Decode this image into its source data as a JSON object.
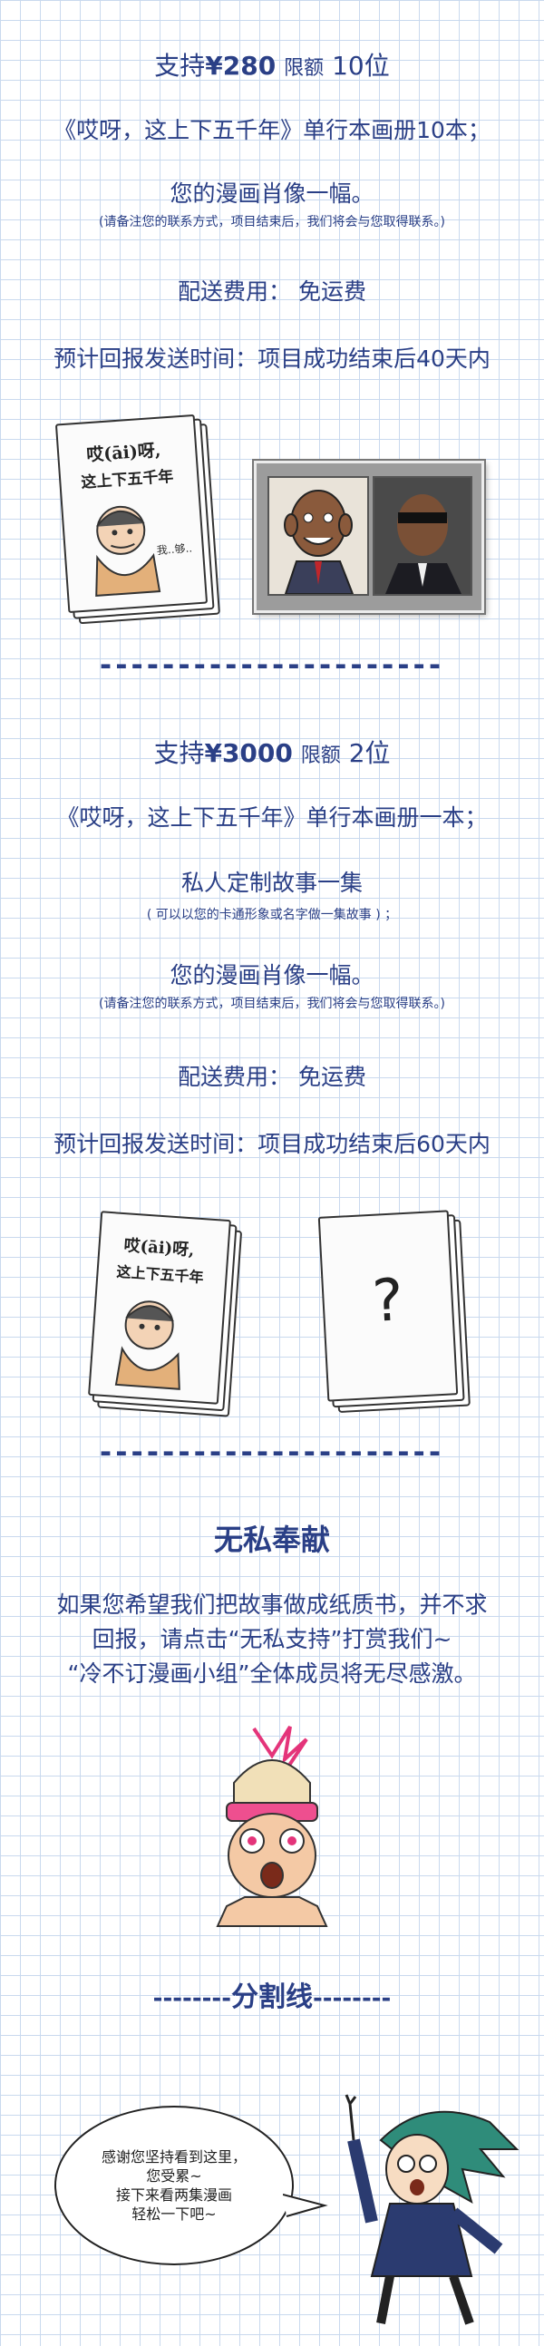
{
  "tier1": {
    "heading_prefix": "支持",
    "heading_amount": "¥280",
    "heading_limit_word": "限额",
    "heading_limit_count": "10位",
    "reward1": "《哎呀，这上下五千年》单行本画册10本；",
    "reward2": "您的漫画肖像一幅。",
    "reward2_note": "(请备注您的联系方式，项目结束后，我们将会与您取得联系。)",
    "shipping": "配送费用： 免运费",
    "delivery": "预计回报发送时间：项目成功结束后40天内",
    "book_title_line1": "哎(āi)呀,",
    "book_title_line2": "这上下五千年",
    "book_speech": "我..够..",
    "divider": "----------------------"
  },
  "tier2": {
    "heading_prefix": "支持",
    "heading_amount": "¥3000",
    "heading_limit_word": "限额",
    "heading_limit_count": "2位",
    "reward1": "《哎呀，这上下五千年》单行本画册一本；",
    "reward2": "私人定制故事一集",
    "reward2_note": "( 可以以您的卡通形象或名字做一集故事 ) ；",
    "reward3": "您的漫画肖像一幅。",
    "reward3_note": "(请备注您的联系方式，项目结束后，我们将会与您取得联系。)",
    "shipping": "配送费用： 免运费",
    "delivery": "预计回报发送时间：项目成功结束后60天内",
    "book_title_line1": "哎(āi)呀,",
    "book_title_line2": "这上下五千年",
    "mystery_mark": "?",
    "divider": "----------------------"
  },
  "selfless": {
    "title": "无私奉献",
    "line1": "如果您希望我们把故事做成纸质书，并不求",
    "line2": "回报，请点击“无私支持”打赏我们~",
    "line3": "“冷不订漫画小组”全体成员将无尽感激。"
  },
  "separator": {
    "dashes_left": "--------",
    "label": "分割线",
    "dashes_right": "--------"
  },
  "ending_bubble": {
    "line1": "感谢您坚持看到这里，",
    "line2": "您受累~",
    "line3": "接下来看两集漫画",
    "line4": "轻松一下吧~"
  },
  "colors": {
    "text": "#2a3f86",
    "grid": "#c9d9ee",
    "background": "#ffffff"
  }
}
